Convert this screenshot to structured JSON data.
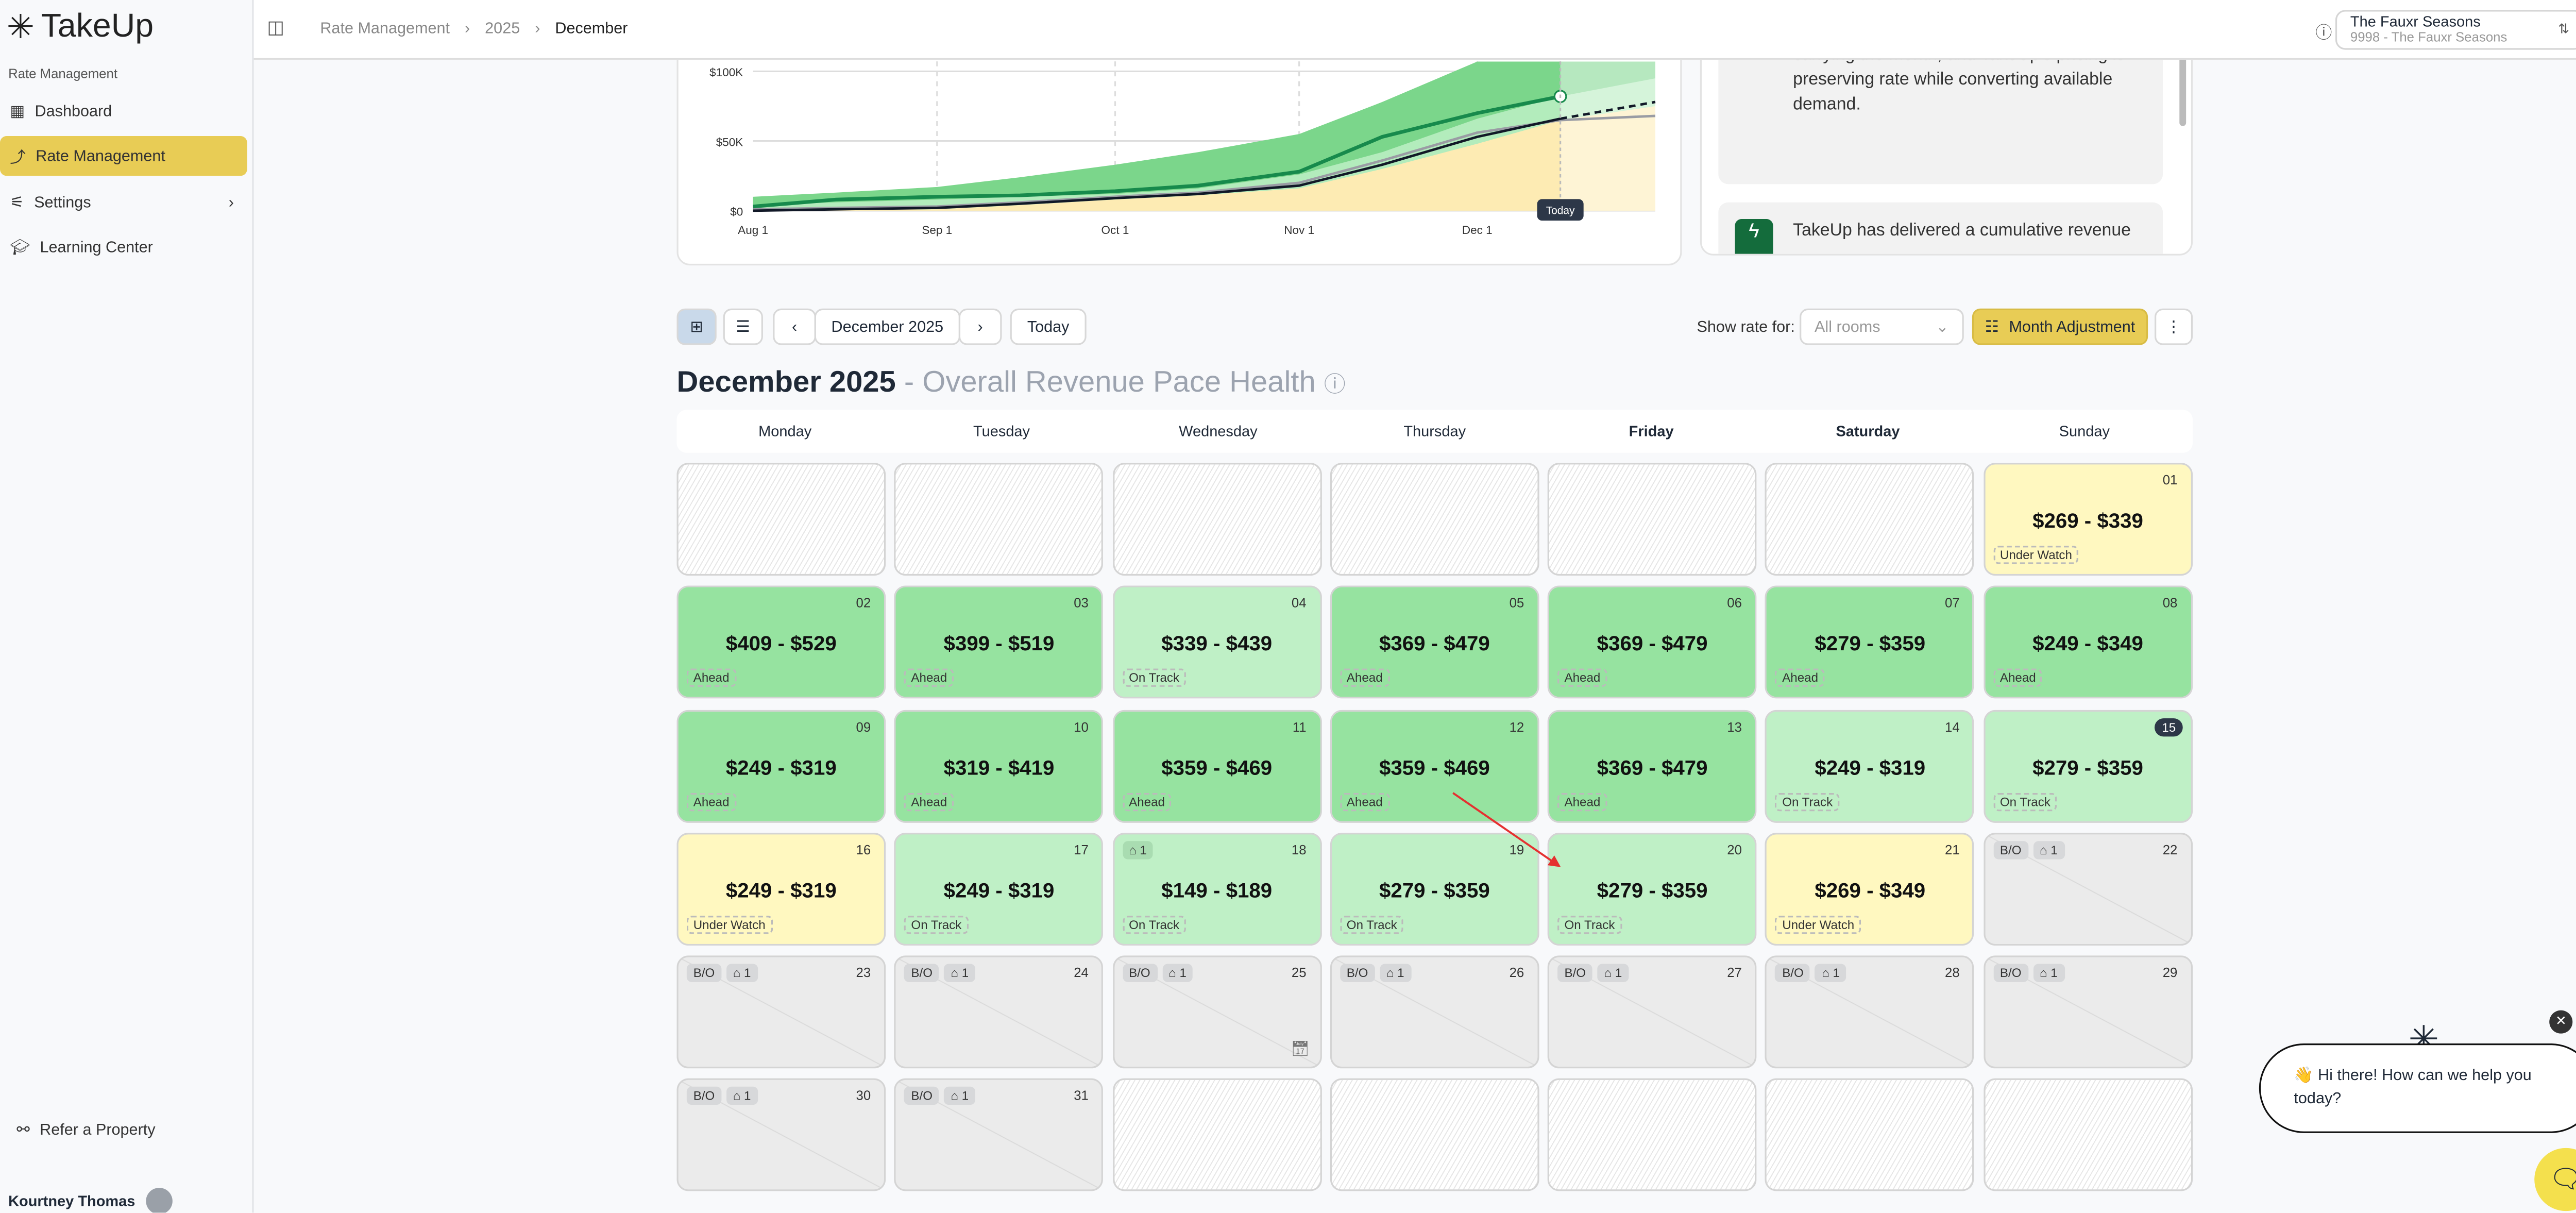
{
  "app": {
    "name": "TakeUp",
    "section_label": "Rate Management"
  },
  "sidebar": {
    "items": [
      {
        "label": "Dashboard",
        "icon": "grid-icon"
      },
      {
        "label": "Rate Management",
        "icon": "trend-icon",
        "active": true
      },
      {
        "label": "Settings",
        "icon": "sliders-icon"
      },
      {
        "label": "Learning Center",
        "icon": "graduation-cap-icon"
      }
    ],
    "refer": "Refer a Property",
    "user": "Kourtney Thomas"
  },
  "header": {
    "breadcrumbs": [
      "Rate Management",
      "2025",
      "December"
    ],
    "property_name": "The Fauxr Seasons",
    "property_sub": "9998 - The Fauxr Seasons"
  },
  "chart_data": {
    "type": "area",
    "x_ticks": [
      "Aug 1",
      "Sep 1",
      "Oct 1",
      "Nov 1",
      "Dec 1"
    ],
    "y_ticks": [
      "$0",
      "$50K",
      "$100K"
    ],
    "ylim": [
      0,
      107
    ],
    "today_label": "Today",
    "grid": true,
    "x": [
      "2025-08-01",
      "2025-08-15",
      "2025-09-01",
      "2025-09-15",
      "2025-10-01",
      "2025-10-15",
      "2025-11-01",
      "2025-11-15",
      "2025-12-01",
      "2025-12-15",
      "2025-12-31"
    ],
    "series": [
      {
        "role": "outer-band-upper",
        "values": [
          10,
          13,
          17,
          24,
          33,
          42,
          55,
          78,
          107,
          107,
          107
        ]
      },
      {
        "role": "inner-band-upper",
        "values": [
          4,
          6,
          8,
          10,
          12,
          16,
          26,
          42,
          66,
          82,
          95
        ]
      },
      {
        "role": "lower-area",
        "values": [
          0,
          0.5,
          1,
          4,
          8,
          11,
          16,
          30,
          48,
          65,
          75
        ]
      },
      {
        "role": "actual",
        "values": [
          3,
          8,
          10,
          11,
          14,
          18,
          28,
          53,
          70,
          82,
          null
        ]
      },
      {
        "role": "pace",
        "values": [
          0,
          1,
          2,
          5,
          9,
          12,
          18,
          33,
          53,
          66,
          78
        ]
      },
      {
        "role": "last-year",
        "values": [
          1,
          2,
          3,
          6,
          10,
          13,
          20,
          36,
          56,
          65,
          68
        ]
      }
    ]
  },
  "insights": {
    "msg1": "short: healthier-than-expected demand is carrying the month, and TakeUp's pricing is preserving rate while converting available demand.",
    "msg2": "TakeUp has delivered a cumulative revenue"
  },
  "toolbar": {
    "month": "December 2025",
    "today": "Today",
    "show_rate_label": "Show rate for:",
    "rooms_placeholder": "All rooms",
    "month_adjustment": "Month Adjustment"
  },
  "calendar": {
    "title": "December 2025",
    "subtitle": " - Overall Revenue Pace Health",
    "weekdays": [
      "Monday",
      "Tuesday",
      "Wednesday",
      "Thursday",
      "Friday",
      "Saturday",
      "Sunday"
    ],
    "colors": {
      "Ahead": "#96e3a0",
      "On Track": "#bff0c6",
      "Under Watch": "#fff8c0"
    },
    "cells": [
      {
        "t": "empty"
      },
      {
        "t": "empty"
      },
      {
        "t": "empty"
      },
      {
        "t": "empty"
      },
      {
        "t": "empty"
      },
      {
        "t": "empty"
      },
      {
        "day": "01",
        "price": "$269 - $339",
        "status": "Under Watch"
      },
      {
        "day": "02",
        "price": "$409 - $529",
        "status": "Ahead"
      },
      {
        "day": "03",
        "price": "$399 - $519",
        "status": "Ahead"
      },
      {
        "day": "04",
        "price": "$339 - $439",
        "status": "On Track"
      },
      {
        "day": "05",
        "price": "$369 - $479",
        "status": "Ahead"
      },
      {
        "day": "06",
        "price": "$369 - $479",
        "status": "Ahead"
      },
      {
        "day": "07",
        "price": "$279 - $359",
        "status": "Ahead"
      },
      {
        "day": "08",
        "price": "$249 - $349",
        "status": "Ahead"
      },
      {
        "day": "09",
        "price": "$249 - $319",
        "status": "Ahead"
      },
      {
        "day": "10",
        "price": "$319 - $419",
        "status": "Ahead"
      },
      {
        "day": "11",
        "price": "$359 - $469",
        "status": "Ahead"
      },
      {
        "day": "12",
        "price": "$359 - $469",
        "status": "Ahead"
      },
      {
        "day": "13",
        "price": "$369 - $479",
        "status": "Ahead"
      },
      {
        "day": "14",
        "price": "$249 - $319",
        "status": "On Track"
      },
      {
        "day": "15",
        "price": "$279 - $359",
        "status": "On Track",
        "today": true
      },
      {
        "day": "16",
        "price": "$249 - $319",
        "status": "Under Watch"
      },
      {
        "day": "17",
        "price": "$249 - $319",
        "status": "On Track"
      },
      {
        "day": "18",
        "price": "$149 - $189",
        "status": "On Track",
        "tags": "1"
      },
      {
        "day": "19",
        "price": "$279 - $359",
        "status": "On Track"
      },
      {
        "day": "20",
        "price": "$279 - $359",
        "status": "On Track"
      },
      {
        "day": "21",
        "price": "$269 - $349",
        "status": "Under Watch"
      },
      {
        "day": "22",
        "t": "bo",
        "bo": "B/O",
        "tags": "1"
      },
      {
        "day": "23",
        "t": "bo",
        "bo": "B/O",
        "tags": "1"
      },
      {
        "day": "24",
        "t": "bo",
        "bo": "B/O",
        "tags": "1"
      },
      {
        "day": "25",
        "t": "bo",
        "bo": "B/O",
        "tags": "1",
        "event": true
      },
      {
        "day": "26",
        "t": "bo",
        "bo": "B/O",
        "tags": "1"
      },
      {
        "day": "27",
        "t": "bo",
        "bo": "B/O",
        "tags": "1"
      },
      {
        "day": "28",
        "t": "bo",
        "bo": "B/O",
        "tags": "1"
      },
      {
        "day": "29",
        "t": "bo",
        "bo": "B/O",
        "tags": "1"
      },
      {
        "day": "30",
        "t": "bo",
        "bo": "B/O",
        "tags": "1"
      },
      {
        "day": "31",
        "t": "bo",
        "bo": "B/O",
        "tags": "1"
      },
      {
        "t": "empty"
      },
      {
        "t": "empty"
      },
      {
        "t": "empty"
      },
      {
        "t": "empty"
      },
      {
        "t": "empty"
      }
    ]
  },
  "chat": {
    "message": "👋 Hi there! How can we help you today?"
  }
}
